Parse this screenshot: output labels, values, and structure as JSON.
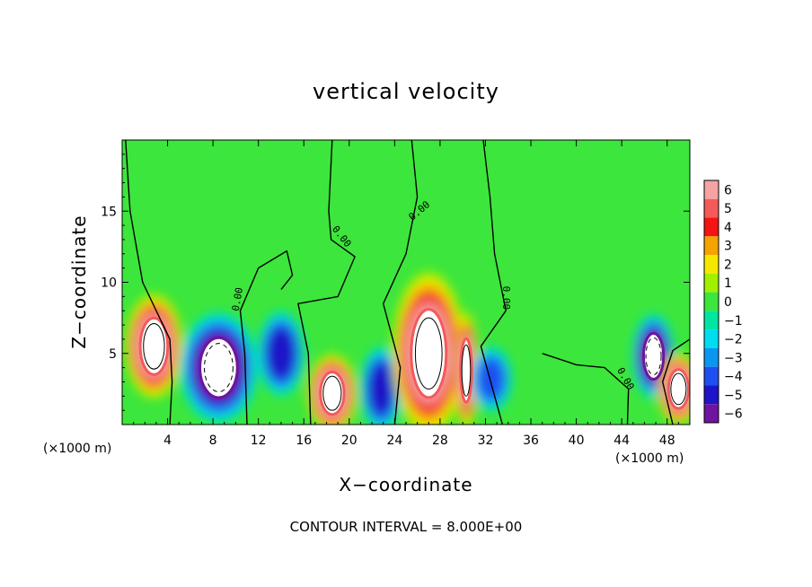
{
  "chart_data": {
    "type": "heatmap",
    "title": "vertical velocity",
    "xlabel": "X−coordinate",
    "ylabel": "Z−coordinate",
    "x_unit_label": "(×1000 m)",
    "footer": "CONTOUR INTERVAL = 8.000E+00",
    "xlim": [
      0,
      50
    ],
    "ylim": [
      0,
      20
    ],
    "x_ticks": [
      {
        "value": 4,
        "label": "4"
      },
      {
        "value": 8,
        "label": "8"
      },
      {
        "value": 12,
        "label": "12"
      },
      {
        "value": 16,
        "label": "16"
      },
      {
        "value": 20,
        "label": "20"
      },
      {
        "value": 24,
        "label": "24"
      },
      {
        "value": 28,
        "label": "28"
      },
      {
        "value": 32,
        "label": "32"
      },
      {
        "value": 36,
        "label": "36"
      },
      {
        "value": 40,
        "label": "40"
      },
      {
        "value": 44,
        "label": "44"
      },
      {
        "value": 48,
        "label": "48"
      }
    ],
    "y_ticks": [
      {
        "value": 5,
        "label": "5"
      },
      {
        "value": 10,
        "label": "10"
      },
      {
        "value": 15,
        "label": "15"
      }
    ],
    "colorbar": {
      "levels": [
        {
          "label": "6",
          "color": "#f5a3a3"
        },
        {
          "label": "5",
          "color": "#f45a5a"
        },
        {
          "label": "4",
          "color": "#f41414"
        },
        {
          "label": "3",
          "color": "#f5a300"
        },
        {
          "label": "2",
          "color": "#f5e800"
        },
        {
          "label": "1",
          "color": "#a0f000"
        },
        {
          "label": "0",
          "color": "#3ce63c"
        },
        {
          "label": "−1",
          "color": "#00e6a0"
        },
        {
          "label": "−2",
          "color": "#00dcf0"
        },
        {
          "label": "−3",
          "color": "#0a96f0"
        },
        {
          "label": "−4",
          "color": "#1e50f0"
        },
        {
          "label": "−5",
          "color": "#1e14c8"
        },
        {
          "label": "−6",
          "color": "#6e14a0"
        }
      ]
    },
    "field_features": [
      {
        "kind": "updraft",
        "x": 2.8,
        "z": 5.5,
        "rx": 2.2,
        "rz": 3.2,
        "peak": 6
      },
      {
        "kind": "downdraft",
        "x": 8.5,
        "z": 4.0,
        "rx": 3.0,
        "rz": 3.4,
        "peak": -6
      },
      {
        "kind": "downdraft",
        "x": 14.0,
        "z": 5.0,
        "rx": 1.8,
        "rz": 2.6,
        "peak": -5
      },
      {
        "kind": "updraft",
        "x": 18.5,
        "z": 2.2,
        "rx": 1.9,
        "rz": 2.4,
        "peak": 6
      },
      {
        "kind": "downdraft",
        "x": 22.8,
        "z": 2.5,
        "rx": 1.6,
        "rz": 2.6,
        "peak": -5
      },
      {
        "kind": "updraft",
        "x": 27.0,
        "z": 5.0,
        "rx": 2.8,
        "rz": 5.0,
        "peak": 6
      },
      {
        "kind": "updraft",
        "x": 30.3,
        "z": 3.8,
        "rx": 0.9,
        "rz": 3.6,
        "peak": 6
      },
      {
        "kind": "downdraft",
        "x": 32.5,
        "z": 3.2,
        "rx": 1.6,
        "rz": 2.0,
        "peak": -4
      },
      {
        "kind": "downdraft",
        "x": 46.8,
        "z": 4.8,
        "rx": 1.6,
        "rz": 2.6,
        "peak": -6
      },
      {
        "kind": "updraft",
        "x": 49.0,
        "z": 2.5,
        "rx": 1.6,
        "rz": 2.2,
        "peak": 6
      }
    ],
    "contour_label": "0.00",
    "contour_label_positions": [
      {
        "x": 10.2,
        "z": 8.8,
        "angle": -80
      },
      {
        "x": 19.3,
        "z": 13.2,
        "angle": 52
      },
      {
        "x": 26.2,
        "z": 15.0,
        "angle": -40
      },
      {
        "x": 33.8,
        "z": 8.9,
        "angle": 90
      },
      {
        "x": 44.3,
        "z": 3.2,
        "angle": 60
      }
    ]
  }
}
